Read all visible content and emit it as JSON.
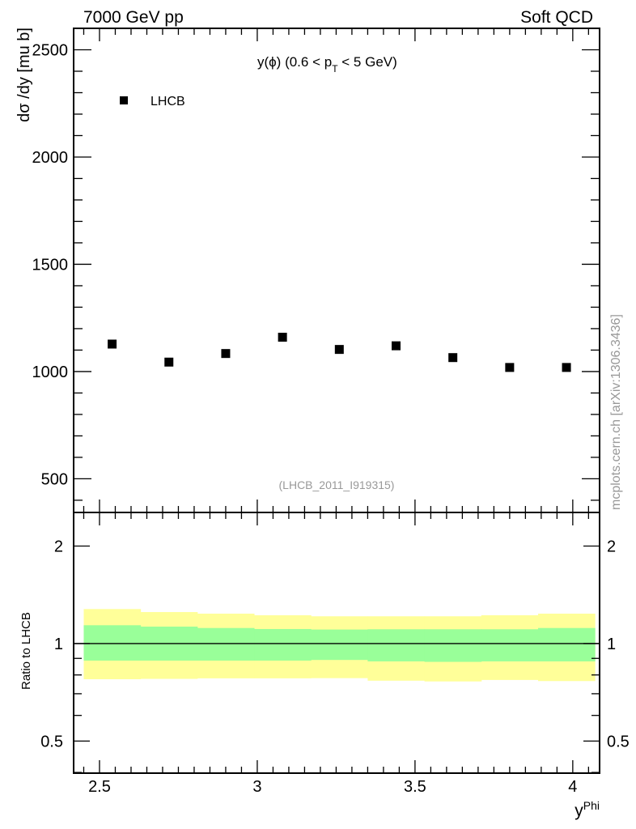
{
  "header": {
    "left": "7000 GeV pp",
    "right": "Soft QCD"
  },
  "watermark": "mcplots.cern.ch [arXiv:1306.3436]",
  "chart_data": [
    {
      "type": "scatter",
      "title": "y(ϕ) (0.6 < pT < 5 GeV)",
      "title_parts": {
        "main": "y(ϕ) (0.6 < p",
        "sub": "T",
        "tail": " < 5 GeV)"
      },
      "analysis_label": "(LHCB_2011_I919315)",
      "ylabel": "dσ /dy [mu b]",
      "xlabel": "y^Phi",
      "xlabel_parts": {
        "base": "y",
        "sup": "Phi"
      },
      "xlim": [
        2.418,
        4.085
      ],
      "ylim": [
        343,
        2600
      ],
      "yticks": [
        500,
        1000,
        1500,
        2000,
        2500
      ],
      "ytick_labels": [
        "500",
        "1000",
        "1500",
        "2000",
        "2500"
      ],
      "legend": {
        "placement": "top-left",
        "entries": [
          {
            "label": "LHCB",
            "marker": "square",
            "color": "#000000"
          }
        ]
      },
      "series": [
        {
          "name": "LHCB",
          "x": [
            2.54,
            2.72,
            2.9,
            3.08,
            3.26,
            3.44,
            3.62,
            3.8,
            3.98
          ],
          "y": [
            1128,
            1044,
            1084,
            1160,
            1103,
            1120,
            1065,
            1019,
            1019
          ]
        }
      ]
    },
    {
      "type": "area",
      "ylabel": "Ratio to LHCB",
      "yscale": "log",
      "xlim": [
        2.418,
        4.085
      ],
      "ylim": [
        0.398,
        2.54
      ],
      "yticks": [
        0.5,
        1,
        2
      ],
      "ytick_labels": [
        "0.5",
        "1",
        "2"
      ],
      "xticks": [
        2.5,
        3,
        3.5,
        4
      ],
      "xtick_labels": [
        "2.5",
        "3",
        "3.5",
        "4"
      ],
      "reference_line": 1,
      "bin_edges": [
        2.45,
        2.63,
        2.81,
        2.99,
        3.17,
        3.35,
        3.53,
        3.71,
        3.89,
        4.07
      ],
      "bands": [
        {
          "name": "total uncertainty",
          "color": "#ffff99",
          "upper": [
            1.278,
            1.251,
            1.237,
            1.223,
            1.214,
            1.214,
            1.214,
            1.223,
            1.237
          ],
          "lower": [
            0.776,
            0.778,
            0.781,
            0.781,
            0.782,
            0.768,
            0.764,
            0.772,
            0.766
          ]
        },
        {
          "name": "stat uncertainty",
          "color": "#99ff99",
          "upper": [
            1.139,
            1.128,
            1.117,
            1.109,
            1.105,
            1.107,
            1.107,
            1.107,
            1.117
          ],
          "lower": [
            0.886,
            0.886,
            0.886,
            0.886,
            0.89,
            0.881,
            0.878,
            0.881,
            0.881
          ]
        }
      ]
    }
  ]
}
